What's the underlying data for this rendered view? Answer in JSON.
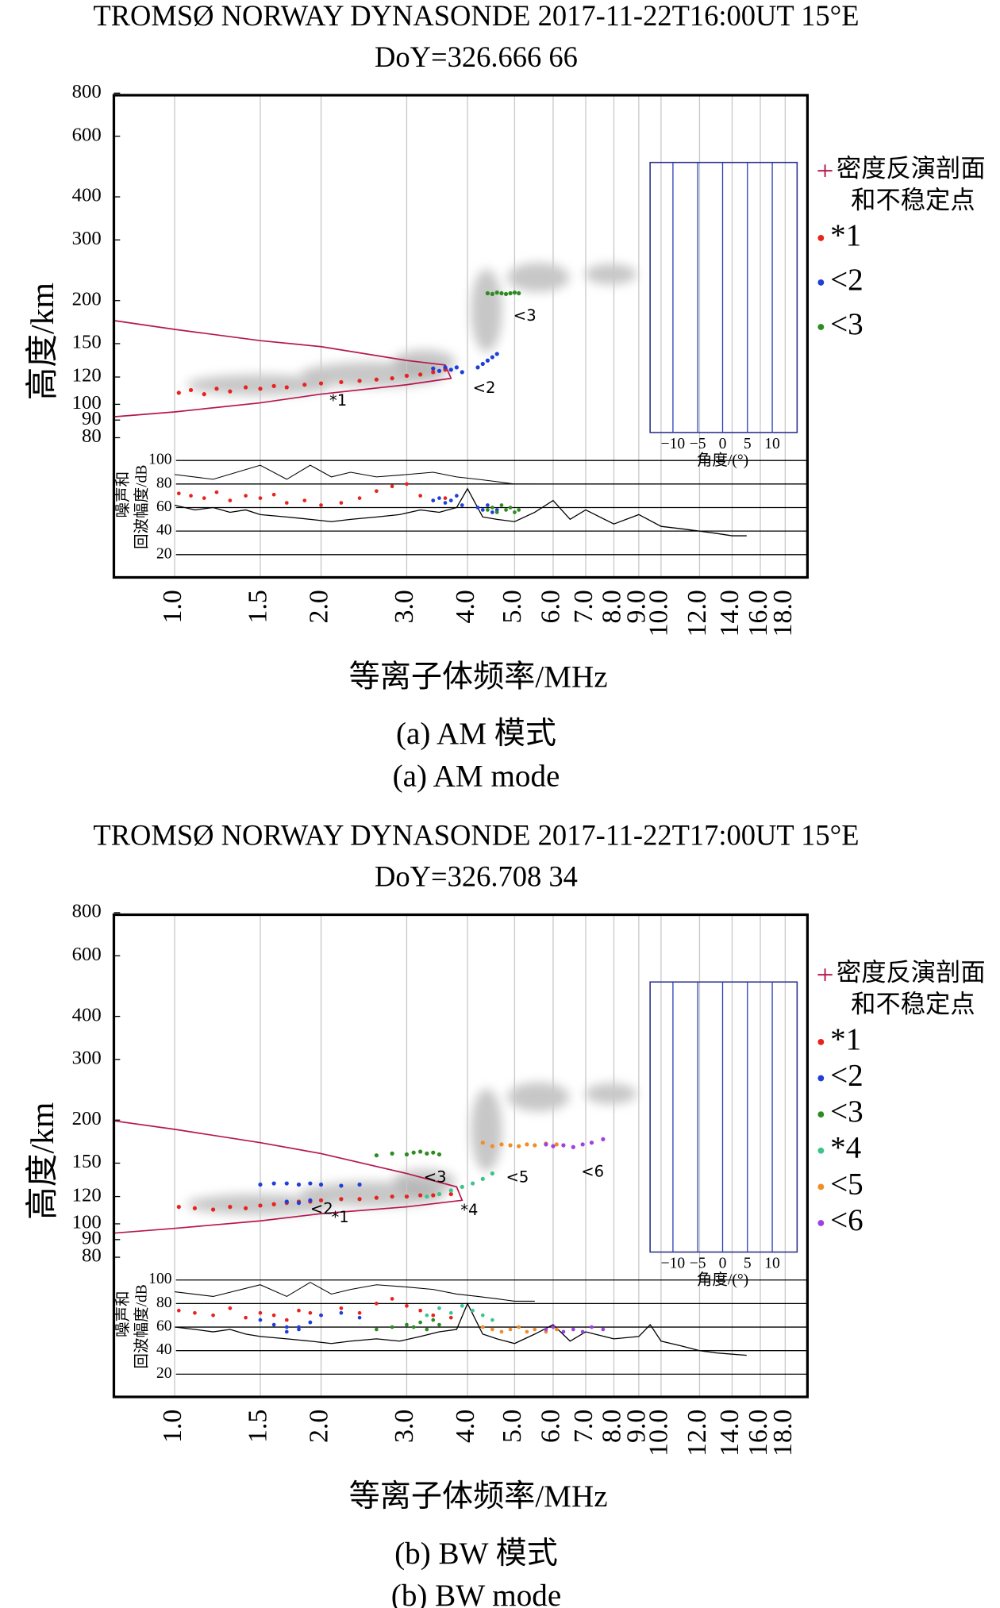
{
  "chart_data": [
    {
      "type": "scatter",
      "title": "TROMSØ NORWAY DYNASONDE 2017-11-22T16:00UT 15°E",
      "subtitle": "DoY=326.666 66",
      "ylabel": "高度/km",
      "xlabel": "等离子体频率/MHz",
      "caption": [
        "(a) AM 模式",
        "(a) AM mode"
      ],
      "xscale": "log",
      "yscale": "log",
      "grid": "x",
      "xlim": [
        0.75,
        20
      ],
      "ylim": [
        80,
        800
      ],
      "xticks": [
        {
          "value": 1,
          "label": "1.0"
        },
        {
          "value": 1.5,
          "label": "1.5"
        },
        {
          "value": 2,
          "label": "2.0"
        },
        {
          "value": 3,
          "label": "3.0"
        },
        {
          "value": 4,
          "label": "4.0"
        },
        {
          "value": 5,
          "label": "5.0"
        },
        {
          "value": 6,
          "label": "6.0"
        },
        {
          "value": 7,
          "label": "7.0"
        },
        {
          "value": 8,
          "label": "8.0"
        },
        {
          "value": 9,
          "label": "9.0"
        },
        {
          "value": 10,
          "label": "10.0"
        },
        {
          "value": 12,
          "label": "12.0"
        },
        {
          "value": 14,
          "label": "14.0"
        },
        {
          "value": 16,
          "label": "16.0"
        },
        {
          "value": 18,
          "label": "18.0"
        }
      ],
      "yticks": [
        80,
        90,
        100,
        120,
        150,
        200,
        300,
        400,
        600,
        800
      ],
      "amplitude_label": [
        "噪声和",
        "回波幅度/dB"
      ],
      "amplitude_lim": [
        20,
        100
      ],
      "amplitude_ticks": [
        20,
        40,
        60,
        80,
        100
      ],
      "angle_label": "角度/(°)",
      "angle_lim": [
        -14.6,
        15
      ],
      "angle_ticks": [
        {
          "value": -10,
          "label": "−10"
        },
        {
          "value": -5,
          "label": "−5"
        },
        0,
        5,
        10
      ],
      "profile": {
        "legend_label": [
          "密度反演剖面",
          "和不稳定点"
        ],
        "color": "#b5174f",
        "x": [
          0.75,
          1.0,
          1.5,
          2.0,
          3.0,
          3.7,
          3.6,
          3.0,
          2.0,
          1.5,
          1.0,
          0.75
        ],
        "values": [
          92,
          95,
          101,
          107,
          114,
          119,
          130,
          134,
          147,
          153,
          165,
          175
        ]
      },
      "noise": {
        "x": [
          1.0,
          1.1,
          1.2,
          1.3,
          1.4,
          1.5,
          1.7,
          1.9,
          2.1,
          2.3,
          2.6,
          2.9,
          3.2,
          3.5,
          3.8,
          4.0,
          4.3,
          4.6,
          5.0,
          5.5,
          6.0,
          6.5,
          7.0,
          8.0,
          9.0,
          10.0,
          11.0,
          12.0,
          13.0,
          14.0,
          15.0
        ],
        "values": [
          62,
          58,
          60,
          56,
          58,
          54,
          52,
          50,
          48,
          50,
          52,
          54,
          58,
          56,
          60,
          76,
          52,
          50,
          48,
          56,
          66,
          50,
          58,
          46,
          54,
          44,
          42,
          40,
          38,
          36,
          36
        ]
      },
      "max_amplitude": {
        "x": [
          1.0,
          1.2,
          1.5,
          1.7,
          1.9,
          2.1,
          2.3,
          2.6,
          3.0,
          3.4,
          3.8,
          4.2,
          4.6,
          5.0,
          5.5
        ],
        "values": [
          88,
          84,
          96,
          84,
          96,
          86,
          90,
          86,
          88,
          90,
          86,
          84,
          82,
          80,
          80
        ]
      },
      "series": [
        {
          "name": "*1",
          "color": "#e8231e",
          "x": [
            1.02,
            1.08,
            1.15,
            1.22,
            1.3,
            1.4,
            1.5,
            1.6,
            1.7,
            1.85,
            2.0,
            2.2,
            2.4,
            2.6,
            2.8,
            3.0,
            3.2,
            3.4,
            3.6
          ],
          "values": [
            108,
            110,
            107,
            111,
            109,
            112,
            111,
            113,
            112,
            114,
            115,
            116,
            117,
            118,
            119,
            121,
            122,
            124,
            126
          ],
          "amplitudes": [
            72,
            70,
            68,
            73,
            66,
            70,
            68,
            71,
            64,
            66,
            62,
            64,
            68,
            74,
            78,
            80,
            70,
            66,
            68
          ]
        },
        {
          "name": "<2",
          "color": "#1f3fd8",
          "x": [
            3.4,
            3.5,
            3.6,
            3.7,
            3.8,
            3.9,
            4.2,
            4.3,
            4.4,
            4.5,
            4.6
          ],
          "values": [
            127,
            125,
            128,
            126,
            128,
            124,
            128,
            131,
            134,
            137,
            140
          ],
          "amplitudes": [
            66,
            68,
            64,
            66,
            70,
            62,
            60,
            58,
            62,
            56,
            58
          ]
        },
        {
          "name": "<3",
          "color": "#2e8b22",
          "x": [
            4.4,
            4.5,
            4.6,
            4.7,
            4.8,
            4.9,
            5.0,
            5.1
          ],
          "values": [
            210,
            209,
            211,
            210,
            209,
            210,
            211,
            210
          ],
          "amplitudes": [
            58,
            60,
            56,
            62,
            58,
            60,
            56,
            58
          ]
        }
      ],
      "annotations": [
        {
          "text": "*1",
          "x": 2.08,
          "y": 102
        },
        {
          "text": "<2",
          "x": 4.1,
          "y": 111
        },
        {
          "text": "<3",
          "x": 4.97,
          "y": 180
        }
      ]
    },
    {
      "type": "scatter",
      "title": "TROMSØ NORWAY DYNASONDE 2017-11-22T17:00UT 15°E",
      "subtitle": "DoY=326.708 34",
      "ylabel": "高度/km",
      "xlabel": "等离子体频率/MHz",
      "caption": [
        "(b) BW 模式",
        "(b) BW mode"
      ],
      "xscale": "log",
      "yscale": "log",
      "grid": "x",
      "xlim": [
        0.75,
        20
      ],
      "ylim": [
        80,
        800
      ],
      "xticks": [
        {
          "value": 1,
          "label": "1.0"
        },
        {
          "value": 1.5,
          "label": "1.5"
        },
        {
          "value": 2,
          "label": "2.0"
        },
        {
          "value": 3,
          "label": "3.0"
        },
        {
          "value": 4,
          "label": "4.0"
        },
        {
          "value": 5,
          "label": "5.0"
        },
        {
          "value": 6,
          "label": "6.0"
        },
        {
          "value": 7,
          "label": "7.0"
        },
        {
          "value": 8,
          "label": "8.0"
        },
        {
          "value": 9,
          "label": "9.0"
        },
        {
          "value": 10,
          "label": "10.0"
        },
        {
          "value": 12,
          "label": "12.0"
        },
        {
          "value": 14,
          "label": "14.0"
        },
        {
          "value": 16,
          "label": "16.0"
        },
        {
          "value": 18,
          "label": "18.0"
        }
      ],
      "yticks": [
        80,
        90,
        100,
        120,
        150,
        200,
        300,
        400,
        600,
        800
      ],
      "amplitude_label": [
        "噪声和",
        "回波幅度/dB"
      ],
      "amplitude_lim": [
        20,
        100
      ],
      "amplitude_ticks": [
        20,
        40,
        60,
        80,
        100
      ],
      "angle_label": "角度/(°)",
      "angle_lim": [
        -14.6,
        15
      ],
      "angle_ticks": [
        {
          "value": -10,
          "label": "−10"
        },
        {
          "value": -5,
          "label": "−5"
        },
        0,
        5,
        10
      ],
      "profile": {
        "legend_label": [
          "密度反演剖面",
          "和不稳定点"
        ],
        "color": "#b5174f",
        "x": [
          0.75,
          1.0,
          1.5,
          2.0,
          3.0,
          3.9,
          3.8,
          3.0,
          2.0,
          1.5,
          1.0,
          0.75
        ],
        "values": [
          94,
          97,
          102,
          107,
          112,
          117,
          128,
          140,
          160,
          172,
          188,
          199
        ]
      },
      "noise": {
        "x": [
          1.0,
          1.1,
          1.2,
          1.3,
          1.4,
          1.5,
          1.7,
          1.9,
          2.1,
          2.3,
          2.6,
          2.9,
          3.2,
          3.5,
          3.8,
          4.0,
          4.3,
          4.6,
          5.0,
          5.5,
          6.0,
          6.5,
          7.0,
          8.0,
          9.0,
          9.5,
          10.0,
          11.0,
          12.0,
          13.0,
          14.0,
          15.0
        ],
        "values": [
          60,
          58,
          56,
          58,
          54,
          52,
          50,
          48,
          46,
          48,
          50,
          48,
          52,
          56,
          58,
          80,
          54,
          50,
          46,
          54,
          62,
          48,
          56,
          50,
          52,
          62,
          48,
          44,
          40,
          38,
          37,
          36
        ]
      },
      "max_amplitude": {
        "x": [
          1.0,
          1.2,
          1.5,
          1.7,
          1.9,
          2.1,
          2.3,
          2.6,
          3.0,
          3.4,
          3.8,
          4.2,
          4.6,
          5.0,
          5.5
        ],
        "values": [
          90,
          86,
          96,
          86,
          98,
          88,
          92,
          96,
          94,
          92,
          88,
          86,
          84,
          82,
          82
        ]
      },
      "series": [
        {
          "name": "*1",
          "color": "#e8231e",
          "x": [
            1.02,
            1.1,
            1.2,
            1.3,
            1.4,
            1.5,
            1.6,
            1.7,
            1.8,
            1.9,
            2.0,
            2.2,
            2.4,
            2.6,
            2.8,
            3.0,
            3.2,
            3.4,
            3.7
          ],
          "values": [
            112,
            111,
            110,
            112,
            111,
            113,
            114,
            115,
            116,
            116,
            117,
            118,
            118,
            119,
            120,
            120,
            121,
            121,
            122
          ],
          "amplitudes": [
            74,
            72,
            70,
            76,
            68,
            72,
            70,
            66,
            74,
            72,
            70,
            76,
            72,
            80,
            84,
            78,
            74,
            70,
            68
          ]
        },
        {
          "name": "<2",
          "color": "#1f3fd8",
          "x": [
            1.5,
            1.6,
            1.7,
            1.8,
            1.9,
            2.0,
            2.2,
            2.4,
            1.7,
            1.8,
            1.9
          ],
          "values": [
            130,
            131,
            131,
            130,
            131,
            130,
            129,
            130,
            116,
            115,
            117
          ],
          "amplitudes": [
            66,
            62,
            60,
            58,
            64,
            70,
            72,
            68,
            56,
            60,
            64
          ]
        },
        {
          "name": "<3",
          "color": "#2e8b22",
          "x": [
            2.6,
            2.8,
            3.0,
            3.1,
            3.2,
            3.3,
            3.4,
            3.5
          ],
          "values": [
            158,
            160,
            159,
            161,
            162,
            160,
            161,
            159
          ],
          "amplitudes": [
            58,
            60,
            62,
            60,
            64,
            58,
            66,
            62
          ]
        },
        {
          "name": "*4",
          "color": "#3cc48a",
          "x": [
            3.3,
            3.5,
            3.7,
            3.9,
            4.1,
            4.3,
            4.5
          ],
          "values": [
            120,
            122,
            125,
            128,
            131,
            135,
            140
          ],
          "amplitudes": [
            70,
            76,
            72,
            78,
            74,
            70,
            66
          ]
        },
        {
          "name": "<5",
          "color": "#f28c28",
          "x": [
            4.3,
            4.5,
            4.7,
            4.9,
            5.1,
            5.3,
            5.5,
            5.8,
            6.1
          ],
          "values": [
            172,
            168,
            170,
            169,
            168,
            170,
            169,
            171,
            170
          ],
          "amplitudes": [
            60,
            58,
            56,
            58,
            60,
            56,
            58,
            56,
            58
          ]
        },
        {
          "name": "<6",
          "color": "#a040e0",
          "x": [
            5.8,
            6.0,
            6.3,
            6.6,
            6.9,
            7.2,
            7.6
          ],
          "values": [
            170,
            168,
            169,
            167,
            170,
            172,
            176
          ],
          "amplitudes": [
            58,
            60,
            56,
            58,
            56,
            60,
            58
          ]
        }
      ],
      "annotations": [
        {
          "text": "*1",
          "x": 2.1,
          "y": 104
        },
        {
          "text": "<2",
          "x": 1.9,
          "y": 110
        },
        {
          "text": "<3",
          "x": 3.25,
          "y": 136
        },
        {
          "text": "*4",
          "x": 3.87,
          "y": 109
        },
        {
          "text": "<5",
          "x": 4.8,
          "y": 136
        },
        {
          "text": "<6",
          "x": 6.85,
          "y": 141
        }
      ]
    }
  ]
}
